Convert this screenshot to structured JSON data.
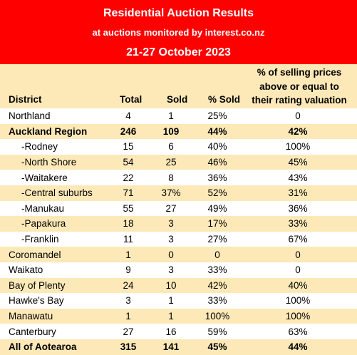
{
  "header": {
    "title": "Residential Auction Results",
    "subtitle": "at auctions monitored by interest.co.nz",
    "date": "21-27 October 2023"
  },
  "columns": {
    "district": "District",
    "total": "Total",
    "sold": "Sold",
    "pct_sold": "% Sold",
    "pct_above_line1": "% of selling prices",
    "pct_above_line2": "above or equal to",
    "pct_above_line3": "their rating valuation"
  },
  "rows": [
    {
      "district": "Northland",
      "total": "4",
      "sold": "1",
      "pct_sold": "25%",
      "pct_above": "0"
    },
    {
      "district": "Auckland Region",
      "total": "246",
      "sold": "109",
      "pct_sold": "44%",
      "pct_above": "42%"
    },
    {
      "district": "-Rodney",
      "total": "15",
      "sold": "6",
      "pct_sold": "40%",
      "pct_above": "100%"
    },
    {
      "district": "-North Shore",
      "total": "54",
      "sold": "25",
      "pct_sold": "46%",
      "pct_above": "45%"
    },
    {
      "district": "-Waitakere",
      "total": "22",
      "sold": "8",
      "pct_sold": "36%",
      "pct_above": "43%"
    },
    {
      "district": "-Central suburbs",
      "total": "71",
      "sold": "37%",
      "pct_sold": "52%",
      "pct_above": "31%"
    },
    {
      "district": "-Manukau",
      "total": "55",
      "sold": "27",
      "pct_sold": "49%",
      "pct_above": "36%"
    },
    {
      "district": "-Papakura",
      "total": "18",
      "sold": "3",
      "pct_sold": "17%",
      "pct_above": "33%"
    },
    {
      "district": "-Franklin",
      "total": "11",
      "sold": "3",
      "pct_sold": "27%",
      "pct_above": "67%"
    },
    {
      "district": "Coromandel",
      "total": "1",
      "sold": "0",
      "pct_sold": "0",
      "pct_above": "0"
    },
    {
      "district": "Waikato",
      "total": "9",
      "sold": "3",
      "pct_sold": "33%",
      "pct_above": "0"
    },
    {
      "district": "Bay of Plenty",
      "total": "24",
      "sold": "10",
      "pct_sold": "42%",
      "pct_above": "40%"
    },
    {
      "district": "Hawke's Bay",
      "total": "3",
      "sold": "1",
      "pct_sold": "33%",
      "pct_above": "100%"
    },
    {
      "district": "Manawatu",
      "total": "1",
      "sold": "1",
      "pct_sold": "100%",
      "pct_above": "100%"
    },
    {
      "district": "Canterbury",
      "total": "27",
      "sold": "16",
      "pct_sold": "59%",
      "pct_above": "63%"
    },
    {
      "district": "All of Aotearoa",
      "total": "315",
      "sold": "141",
      "pct_sold": "45%",
      "pct_above": "44%"
    }
  ],
  "colors": {
    "header_bg": "#ff0000",
    "alt_row": "#fde9b8",
    "header_text": "#ffffff"
  }
}
